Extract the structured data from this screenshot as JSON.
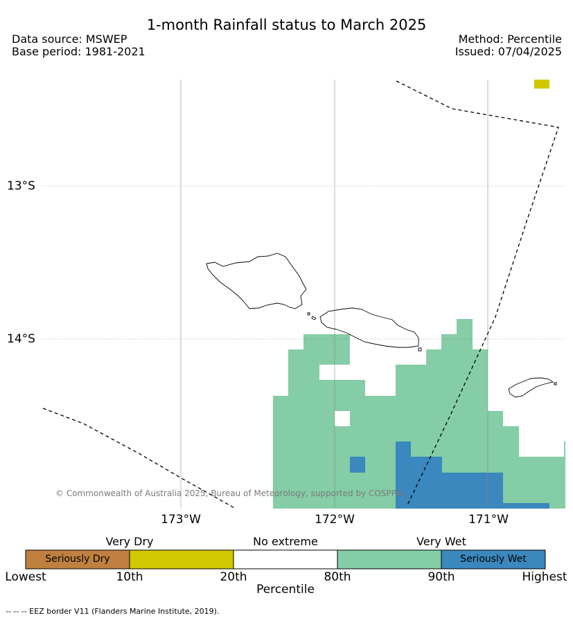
{
  "title": "1-month Rainfall status to March 2025",
  "data_source": "Data source: MSWEP",
  "base_period": "Base period: 1981-2021",
  "method": "Method: Percentile",
  "issued": "Issued: 07/04/2025",
  "lat_labels": [
    "13°S",
    "14°S"
  ],
  "lon_labels": [
    "173°W",
    "172°W",
    "171°W"
  ],
  "copyright": "© Commonwealth of Australia 2025, Bureau of Meteorology, supported by COSPPac",
  "legend": {
    "groups": [
      "Very Dry",
      "No extreme",
      "Very Wet"
    ],
    "categories": [
      {
        "label": "Seriously Dry",
        "color": "#bf8040"
      },
      {
        "label": "",
        "color": "#d2c800"
      },
      {
        "label": "",
        "color": "#ffffff"
      },
      {
        "label": "",
        "color": "#84cda6"
      },
      {
        "label": "Seriously Wet",
        "color": "#3a88be"
      }
    ],
    "ticks": [
      "Lowest",
      "10th",
      "20th",
      "80th",
      "90th",
      "Highest"
    ],
    "axis_title": "Percentile"
  },
  "footnote": "-- -- -- EEZ border V11 (Flanders Marine Institute, 2019)."
}
